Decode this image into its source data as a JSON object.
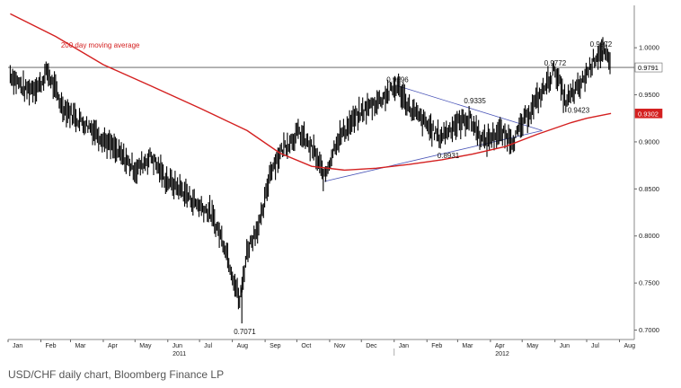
{
  "caption": "USD/CHF daily chart, Bloomberg Finance LP",
  "chart_data": {
    "type": "line",
    "title": "",
    "xlabel": "",
    "ylabel": "",
    "ylim": [
      0.69,
      1.045
    ],
    "y_axis_side": "right",
    "grid": false,
    "y_ticks": [
      "1.0000",
      "0.9500",
      "0.9000",
      "0.8500",
      "0.8000",
      "0.7500",
      "0.7000"
    ],
    "x_ticks": [
      "Jan",
      "Feb",
      "Mar",
      "Apr",
      "May",
      "Jun",
      "Jul",
      "Aug",
      "Sep",
      "Oct",
      "Nov",
      "Dec",
      "Jan",
      "Feb",
      "Mar",
      "Apr",
      "May",
      "Jun",
      "Jul",
      "Aug"
    ],
    "year_labels": [
      "2011",
      "2012"
    ],
    "series": [
      {
        "name": "",
        "style": "daily bars (high/low)",
        "color": "#000000",
        "x": [
          "2011-01-03",
          "2011-01-17",
          "2011-01-31",
          "2011-02-07",
          "2011-02-21",
          "2011-03-07",
          "2011-03-21",
          "2011-04-04",
          "2011-04-18",
          "2011-05-02",
          "2011-05-16",
          "2011-05-30",
          "2011-06-13",
          "2011-06-27",
          "2011-07-11",
          "2011-07-25",
          "2011-08-08",
          "2011-08-15",
          "2011-08-29",
          "2011-09-06",
          "2011-09-19",
          "2011-10-03",
          "2011-10-17",
          "2011-10-27",
          "2011-11-07",
          "2011-11-21",
          "2011-12-05",
          "2011-12-19",
          "2012-01-04",
          "2012-01-16",
          "2012-01-30",
          "2012-02-13",
          "2012-02-27",
          "2012-03-12",
          "2012-03-26",
          "2012-04-09",
          "2012-04-23",
          "2012-05-07",
          "2012-05-21",
          "2012-06-01",
          "2012-06-11",
          "2012-06-25",
          "2012-07-09",
          "2012-07-16",
          "2012-07-24"
        ],
        "y": [
          0.972,
          0.955,
          0.96,
          0.975,
          0.938,
          0.925,
          0.915,
          0.9,
          0.885,
          0.87,
          0.885,
          0.86,
          0.85,
          0.835,
          0.825,
          0.79,
          0.73,
          0.785,
          0.82,
          0.87,
          0.895,
          0.91,
          0.89,
          0.862,
          0.9,
          0.92,
          0.935,
          0.945,
          0.9596,
          0.935,
          0.92,
          0.905,
          0.918,
          0.925,
          0.9,
          0.91,
          0.902,
          0.93,
          0.955,
          0.9772,
          0.942,
          0.96,
          0.99,
          0.9972,
          0.9791
        ]
      },
      {
        "name": "200 day moving average",
        "color": "#d42020",
        "x": [
          "2011-01-03",
          "2011-02-15",
          "2011-04-01",
          "2011-05-15",
          "2011-07-01",
          "2011-08-15",
          "2011-09-15",
          "2011-10-15",
          "2011-11-15",
          "2011-12-15",
          "2012-01-15",
          "2012-02-15",
          "2012-03-15",
          "2012-04-15",
          "2012-05-15",
          "2012-06-15",
          "2012-07-01",
          "2012-07-24"
        ],
        "y": [
          1.036,
          1.012,
          0.982,
          0.96,
          0.936,
          0.912,
          0.888,
          0.874,
          0.87,
          0.872,
          0.876,
          0.881,
          0.887,
          0.895,
          0.908,
          0.92,
          0.925,
          0.9302
        ]
      }
    ],
    "reference_lines": [
      {
        "type": "horizontal",
        "value": 0.9791,
        "color": "#555555"
      },
      {
        "type": "trendline",
        "from": [
          "2011-10-27",
          0.858
        ],
        "to": [
          "2012-05-20",
          0.912
        ],
        "color": "#4b56b8"
      },
      {
        "type": "trendline",
        "from": [
          "2012-01-04",
          0.9596
        ],
        "to": [
          "2012-05-20",
          0.912
        ],
        "color": "#4b56b8"
      }
    ],
    "axis_value_labels": [
      {
        "text": "0.9791",
        "value": 0.9791,
        "background": "#ffffff",
        "color": "#000000"
      },
      {
        "text": "0.9302",
        "value": 0.9302,
        "background": "#d42020",
        "color": "#ffffff"
      }
    ],
    "annotations": [
      {
        "text": "0.7071",
        "date": "2011-08-10",
        "value": 0.7071
      },
      {
        "text": "0.9596",
        "date": "2012-01-04",
        "value": 0.9596
      },
      {
        "text": "0.9335",
        "date": "2012-03-12",
        "value": 0.9335
      },
      {
        "text": "0.8931",
        "date": "2012-02-21",
        "value": 0.8931
      },
      {
        "text": "0.9772",
        "date": "2012-06-01",
        "value": 0.9772
      },
      {
        "text": "0.9423",
        "date": "2012-06-18",
        "value": 0.9423
      },
      {
        "text": "0.9972",
        "date": "2012-07-16",
        "value": 0.9972
      },
      {
        "text": "200 day moving average",
        "date": "2011-02-20",
        "value": 1.0
      }
    ]
  }
}
